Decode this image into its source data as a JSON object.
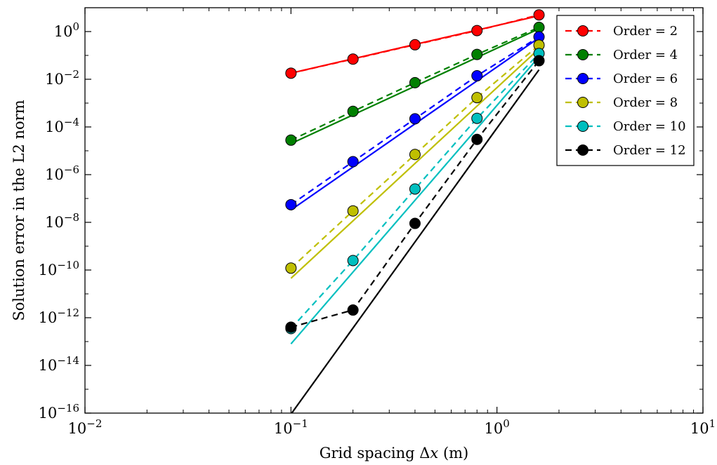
{
  "chart_data": {
    "type": "line",
    "xlabel": "Grid spacing Δx (m)",
    "ylabel": "Solution error in the L2 norm",
    "xscale": "log",
    "yscale": "log",
    "xlim": [
      0.01,
      10
    ],
    "ylim": [
      1e-16,
      10
    ],
    "x_ticks": [
      {
        "value": 0.01,
        "base": "10",
        "exp": "−2"
      },
      {
        "value": 0.1,
        "base": "10",
        "exp": "−1"
      },
      {
        "value": 1,
        "base": "10",
        "exp": "0"
      },
      {
        "value": 10,
        "base": "10",
        "exp": "1"
      }
    ],
    "y_ticks": [
      {
        "value": 1e-16,
        "base": "10",
        "exp": "−16"
      },
      {
        "value": 1e-14,
        "base": "10",
        "exp": "−14"
      },
      {
        "value": 1e-12,
        "base": "10",
        "exp": "−12"
      },
      {
        "value": 1e-10,
        "base": "10",
        "exp": "−10"
      },
      {
        "value": 1e-08,
        "base": "10",
        "exp": "−8"
      },
      {
        "value": 1e-06,
        "base": "10",
        "exp": "−6"
      },
      {
        "value": 0.0001,
        "base": "10",
        "exp": "−4"
      },
      {
        "value": 0.01,
        "base": "10",
        "exp": "−2"
      },
      {
        "value": 1,
        "base": "10",
        "exp": "0"
      }
    ],
    "grid": false,
    "legend_position": "top-right",
    "x": [
      0.1,
      0.2,
      0.4,
      0.8,
      1.6
    ],
    "series": [
      {
        "name": "Order = 2",
        "color": "#ff0000",
        "measured": [
          0.018,
          0.07,
          0.28,
          1.1,
          5.0
        ],
        "fit": [
          0.018,
          0.072,
          0.29,
          1.15,
          4.6
        ]
      },
      {
        "name": "Order = 4",
        "color": "#008000",
        "measured": [
          2.8e-05,
          0.00045,
          0.0072,
          0.11,
          1.5
        ],
        "fit": [
          2e-05,
          0.00032,
          0.0051,
          0.082,
          1.3
        ]
      },
      {
        "name": "Order = 6",
        "color": "#0000ff",
        "measured": [
          5.5e-08,
          3.5e-06,
          0.00022,
          0.014,
          0.6
        ],
        "fit": [
          3.3e-08,
          2.1e-06,
          0.000135,
          0.0086,
          0.55
        ]
      },
      {
        "name": "Order = 8",
        "color": "#bfbf00",
        "measured": [
          1.2e-10,
          3e-08,
          7e-06,
          0.0017,
          0.27
        ],
        "fit": [
          4.5e-11,
          1.15e-08,
          2.95e-06,
          0.00075,
          0.19
        ]
      },
      {
        "name": "Order = 10",
        "color": "#00bfbf",
        "measured": [
          3.5e-13,
          2.5e-10,
          2.5e-07,
          0.00023,
          0.12
        ],
        "fit": [
          8e-14,
          8.2e-11,
          8.4e-08,
          8.6e-05,
          0.088
        ]
      },
      {
        "name": "Order = 12",
        "color": "#000000",
        "measured": [
          4e-13,
          2.1e-12,
          9e-09,
          3e-05,
          0.06
        ],
        "fit": [
          9e-17,
          3.7e-13,
          1.5e-09,
          6.2e-06,
          0.025
        ]
      }
    ]
  }
}
